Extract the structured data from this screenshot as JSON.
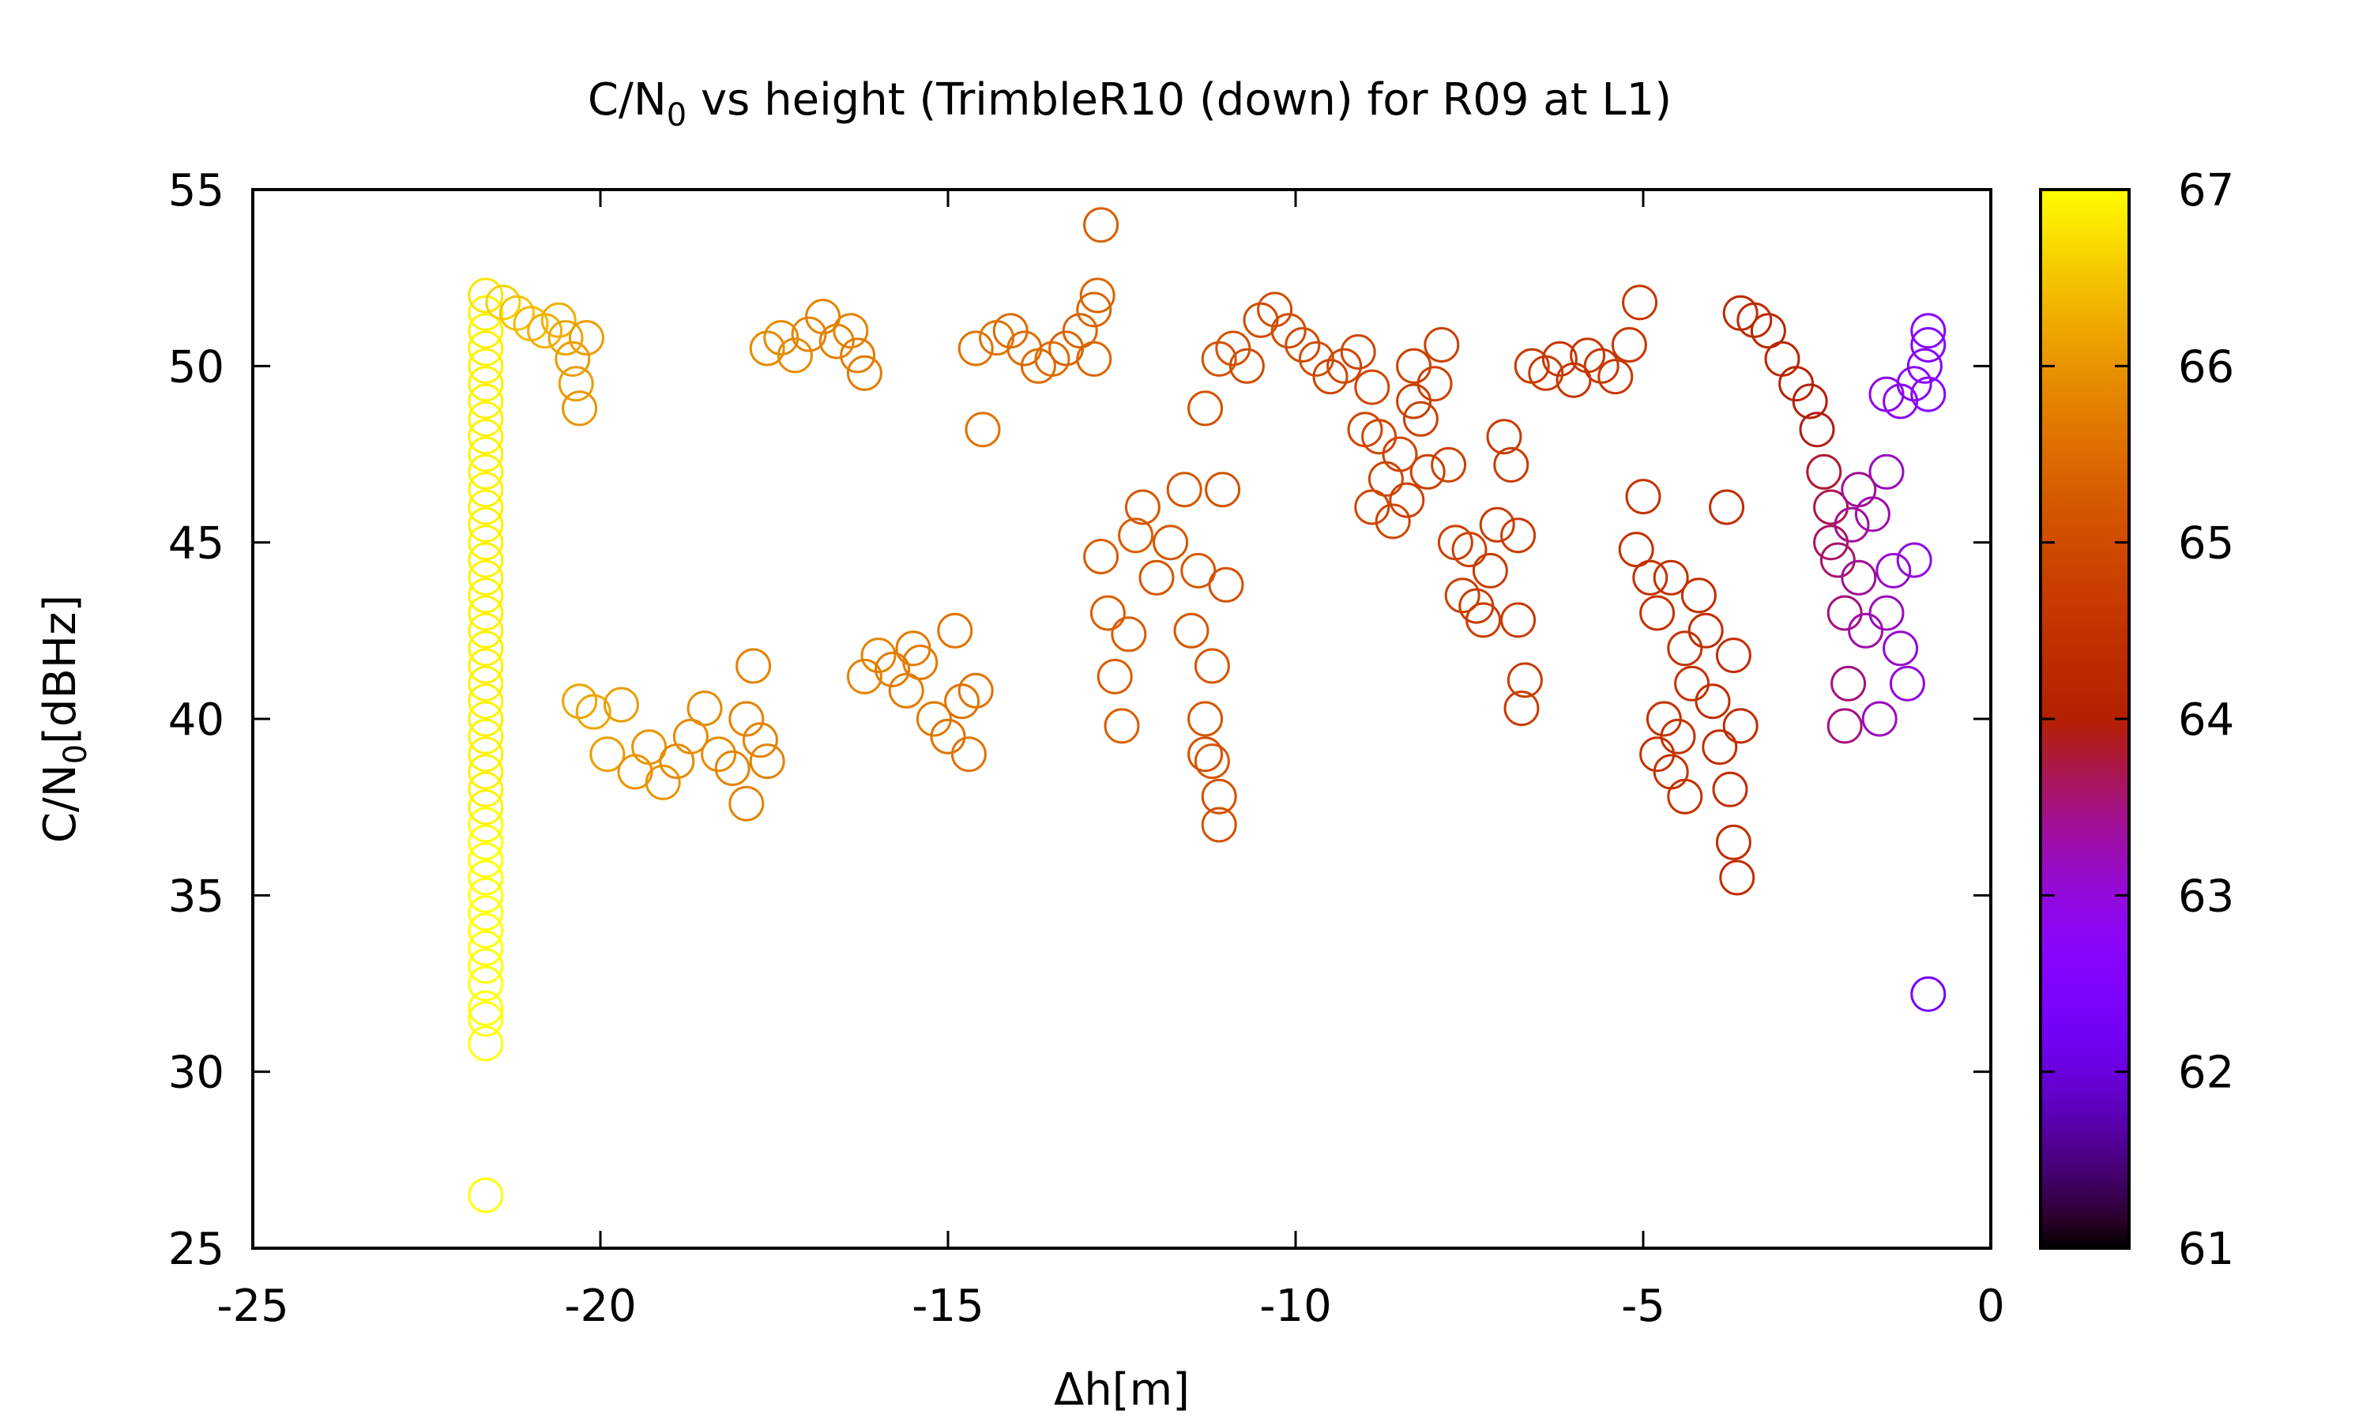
{
  "chart_data": {
    "type": "scatter",
    "title": "C/N",
    "title_sub": "0",
    "title_rest": " vs height (TrimbleR10 (down) for R09 at L1)",
    "xlabel": "Δh[m]",
    "ylabel_main": "C/N",
    "ylabel_sub": "0",
    "ylabel_rest": "[dBHz]",
    "xlim": [
      -25,
      0
    ],
    "ylim": [
      25,
      55
    ],
    "xticks": [
      -25,
      -20,
      -15,
      -10,
      -5,
      0
    ],
    "yticks": [
      25,
      30,
      35,
      40,
      45,
      50,
      55
    ],
    "colorbar": {
      "range": [
        61,
        67
      ],
      "ticks": [
        61,
        62,
        63,
        64,
        65,
        66,
        67
      ],
      "palette": "gnuplot-pm3d"
    },
    "grid": false,
    "marker": "open-circle",
    "point_format": [
      "x",
      "y",
      "c"
    ],
    "points": [
      [
        -21.65,
        26.5,
        67.0
      ],
      [
        -21.65,
        30.8,
        67.0
      ],
      [
        -21.65,
        31.5,
        67.0
      ],
      [
        -21.65,
        31.8,
        67.0
      ],
      [
        -21.65,
        32.5,
        67.0
      ],
      [
        -21.65,
        33.0,
        67.0
      ],
      [
        -21.65,
        33.5,
        67.0
      ],
      [
        -21.65,
        34.0,
        67.0
      ],
      [
        -21.65,
        34.5,
        67.0
      ],
      [
        -21.65,
        35.0,
        67.0
      ],
      [
        -21.65,
        35.5,
        67.0
      ],
      [
        -21.65,
        36.0,
        67.0
      ],
      [
        -21.65,
        36.5,
        67.0
      ],
      [
        -21.65,
        37.0,
        67.0
      ],
      [
        -21.65,
        37.5,
        66.9
      ],
      [
        -21.65,
        38.0,
        66.9
      ],
      [
        -21.65,
        38.5,
        66.9
      ],
      [
        -21.65,
        39.0,
        66.9
      ],
      [
        -21.65,
        39.5,
        66.9
      ],
      [
        -21.65,
        40.0,
        66.9
      ],
      [
        -21.65,
        40.5,
        66.9
      ],
      [
        -21.65,
        41.0,
        66.9
      ],
      [
        -21.65,
        41.5,
        66.9
      ],
      [
        -21.65,
        42.0,
        66.9
      ],
      [
        -21.65,
        42.5,
        66.9
      ],
      [
        -21.65,
        43.0,
        66.9
      ],
      [
        -21.65,
        43.5,
        66.9
      ],
      [
        -21.65,
        44.0,
        66.9
      ],
      [
        -21.65,
        44.5,
        66.9
      ],
      [
        -21.65,
        45.0,
        66.9
      ],
      [
        -21.65,
        45.5,
        66.9
      ],
      [
        -21.65,
        46.0,
        66.9
      ],
      [
        -21.65,
        46.5,
        66.9
      ],
      [
        -21.65,
        47.0,
        66.9
      ],
      [
        -21.65,
        47.5,
        66.9
      ],
      [
        -21.65,
        48.0,
        66.9
      ],
      [
        -21.65,
        48.5,
        66.9
      ],
      [
        -21.65,
        49.0,
        66.9
      ],
      [
        -21.65,
        49.5,
        66.9
      ],
      [
        -21.65,
        50.0,
        66.9
      ],
      [
        -21.65,
        50.5,
        66.9
      ],
      [
        -21.65,
        51.0,
        66.9
      ],
      [
        -21.65,
        51.5,
        66.9
      ],
      [
        -21.65,
        52.0,
        66.8
      ],
      [
        -21.4,
        51.8,
        66.6
      ],
      [
        -21.2,
        51.5,
        66.5
      ],
      [
        -21.0,
        51.2,
        66.4
      ],
      [
        -20.8,
        51.0,
        66.3
      ],
      [
        -20.6,
        51.3,
        66.3
      ],
      [
        -20.5,
        50.8,
        66.2
      ],
      [
        -20.4,
        50.2,
        66.1
      ],
      [
        -20.35,
        49.5,
        66.1
      ],
      [
        -20.3,
        48.8,
        66.0
      ],
      [
        -20.2,
        50.8,
        66.1
      ],
      [
        -20.3,
        40.5,
        66.2
      ],
      [
        -20.1,
        40.2,
        66.2
      ],
      [
        -19.9,
        39.0,
        66.1
      ],
      [
        -19.7,
        40.4,
        66.1
      ],
      [
        -19.5,
        38.5,
        66.0
      ],
      [
        -19.3,
        39.2,
        66.0
      ],
      [
        -19.1,
        38.2,
        66.0
      ],
      [
        -18.9,
        38.8,
        65.9
      ],
      [
        -18.7,
        39.5,
        65.9
      ],
      [
        -18.5,
        40.3,
        65.9
      ],
      [
        -18.3,
        39.0,
        65.9
      ],
      [
        -18.1,
        38.6,
        65.8
      ],
      [
        -17.9,
        40.0,
        65.8
      ],
      [
        -17.8,
        41.5,
        65.8
      ],
      [
        -17.7,
        39.4,
        65.8
      ],
      [
        -17.9,
        37.6,
        65.8
      ],
      [
        -17.6,
        38.8,
        65.8
      ],
      [
        -17.6,
        50.5,
        65.9
      ],
      [
        -17.4,
        50.8,
        65.9
      ],
      [
        -17.2,
        50.3,
        65.9
      ],
      [
        -17.0,
        50.9,
        65.8
      ],
      [
        -16.8,
        51.4,
        65.8
      ],
      [
        -16.6,
        50.7,
        65.8
      ],
      [
        -16.4,
        51.0,
        65.8
      ],
      [
        -16.3,
        50.3,
        65.7
      ],
      [
        -16.2,
        49.8,
        65.7
      ],
      [
        -16.2,
        41.2,
        65.8
      ],
      [
        -16.0,
        41.8,
        65.8
      ],
      [
        -15.8,
        41.4,
        65.7
      ],
      [
        -15.6,
        40.8,
        65.7
      ],
      [
        -15.4,
        41.6,
        65.7
      ],
      [
        -15.2,
        40.0,
        65.7
      ],
      [
        -15.0,
        39.5,
        65.6
      ],
      [
        -14.9,
        42.5,
        65.6
      ],
      [
        -14.8,
        40.5,
        65.6
      ],
      [
        -14.6,
        40.8,
        65.6
      ],
      [
        -14.7,
        39.0,
        65.6
      ],
      [
        -15.5,
        42.0,
        65.7
      ],
      [
        -14.6,
        50.5,
        65.6
      ],
      [
        -14.5,
        48.2,
        65.6
      ],
      [
        -14.3,
        50.8,
        65.6
      ],
      [
        -14.1,
        51.0,
        65.5
      ],
      [
        -13.9,
        50.5,
        65.5
      ],
      [
        -13.7,
        50.0,
        65.5
      ],
      [
        -13.5,
        50.2,
        65.5
      ],
      [
        -13.3,
        50.5,
        65.4
      ],
      [
        -13.1,
        51.0,
        65.4
      ],
      [
        -12.9,
        51.6,
        65.4
      ],
      [
        -12.85,
        52.0,
        65.4
      ],
      [
        -12.8,
        54.0,
        65.3
      ],
      [
        -12.9,
        50.2,
        65.4
      ],
      [
        -12.8,
        44.6,
        65.3
      ],
      [
        -12.7,
        43.0,
        65.3
      ],
      [
        -12.6,
        41.2,
        65.3
      ],
      [
        -12.5,
        39.8,
        65.3
      ],
      [
        -12.4,
        42.4,
        65.3
      ],
      [
        -12.3,
        45.2,
        65.3
      ],
      [
        -12.2,
        46.0,
        65.2
      ],
      [
        -12.0,
        44.0,
        65.2
      ],
      [
        -11.8,
        45.0,
        65.2
      ],
      [
        -11.6,
        46.5,
        65.2
      ],
      [
        -11.5,
        42.5,
        65.2
      ],
      [
        -11.4,
        44.2,
        65.2
      ],
      [
        -11.3,
        40.0,
        65.2
      ],
      [
        -11.2,
        38.8,
        65.2
      ],
      [
        -11.1,
        37.0,
        65.1
      ],
      [
        -11.05,
        46.5,
        65.1
      ],
      [
        -11.2,
        41.5,
        65.2
      ],
      [
        -11.1,
        37.8,
        65.1
      ],
      [
        -11.0,
        43.8,
        65.1
      ],
      [
        -11.3,
        39.0,
        65.1
      ],
      [
        -11.3,
        48.8,
        65.1
      ],
      [
        -11.1,
        50.2,
        65.1
      ],
      [
        -10.9,
        50.5,
        65.1
      ],
      [
        -10.7,
        50.0,
        65.0
      ],
      [
        -10.5,
        51.3,
        65.0
      ],
      [
        -10.3,
        51.6,
        65.0
      ],
      [
        -10.1,
        51.0,
        65.0
      ],
      [
        -9.9,
        50.6,
        65.0
      ],
      [
        -9.7,
        50.2,
        65.0
      ],
      [
        -9.5,
        49.7,
        64.9
      ],
      [
        -9.3,
        50.0,
        64.9
      ],
      [
        -9.1,
        50.4,
        64.9
      ],
      [
        -8.9,
        49.4,
        64.9
      ],
      [
        -8.8,
        48.0,
        64.9
      ],
      [
        -8.7,
        46.8,
        64.9
      ],
      [
        -8.6,
        45.6,
        64.9
      ],
      [
        -8.5,
        47.5,
        64.9
      ],
      [
        -8.4,
        46.2,
        64.8
      ],
      [
        -8.3,
        49.0,
        64.8
      ],
      [
        -8.2,
        48.5,
        64.8
      ],
      [
        -8.1,
        47.0,
        64.8
      ],
      [
        -8.0,
        49.5,
        64.8
      ],
      [
        -7.9,
        50.6,
        64.8
      ],
      [
        -7.8,
        47.2,
        64.8
      ],
      [
        -7.7,
        45.0,
        64.8
      ],
      [
        -7.6,
        43.5,
        64.8
      ],
      [
        -7.5,
        44.8,
        64.8
      ],
      [
        -7.4,
        43.2,
        64.7
      ],
      [
        -7.3,
        42.8,
        64.7
      ],
      [
        -7.2,
        44.2,
        64.7
      ],
      [
        -7.1,
        45.5,
        64.7
      ],
      [
        -7.0,
        48.0,
        64.7
      ],
      [
        -6.9,
        47.2,
        64.7
      ],
      [
        -6.8,
        42.8,
        64.7
      ],
      [
        -6.75,
        40.3,
        64.7
      ],
      [
        -6.7,
        41.1,
        64.7
      ],
      [
        -6.8,
        45.2,
        64.7
      ],
      [
        -8.9,
        46.0,
        64.9
      ],
      [
        -8.3,
        50.0,
        64.8
      ],
      [
        -9.0,
        48.2,
        64.9
      ],
      [
        -6.6,
        50.0,
        64.7
      ],
      [
        -6.4,
        49.8,
        64.7
      ],
      [
        -6.2,
        50.2,
        64.6
      ],
      [
        -6.0,
        49.6,
        64.6
      ],
      [
        -5.8,
        50.3,
        64.6
      ],
      [
        -5.6,
        50.0,
        64.6
      ],
      [
        -5.4,
        49.7,
        64.6
      ],
      [
        -5.2,
        50.6,
        64.6
      ],
      [
        -5.05,
        51.8,
        64.6
      ],
      [
        -5.0,
        46.3,
        64.5
      ],
      [
        -4.9,
        44.0,
        64.5
      ],
      [
        -4.8,
        43.0,
        64.5
      ],
      [
        -4.7,
        40.0,
        64.5
      ],
      [
        -4.6,
        38.5,
        64.5
      ],
      [
        -4.5,
        39.5,
        64.5
      ],
      [
        -4.4,
        37.8,
        64.5
      ],
      [
        -4.3,
        41.0,
        64.5
      ],
      [
        -4.2,
        43.5,
        64.4
      ],
      [
        -4.1,
        42.5,
        64.4
      ],
      [
        -4.0,
        40.5,
        64.4
      ],
      [
        -3.9,
        39.2,
        64.4
      ],
      [
        -3.8,
        46.0,
        64.4
      ],
      [
        -3.75,
        38.0,
        64.4
      ],
      [
        -3.7,
        36.5,
        64.4
      ],
      [
        -3.65,
        35.5,
        64.4
      ],
      [
        -3.6,
        39.8,
        64.4
      ],
      [
        -3.7,
        41.8,
        64.4
      ],
      [
        -4.6,
        44.0,
        64.5
      ],
      [
        -5.1,
        44.8,
        64.5
      ],
      [
        -4.8,
        39.0,
        64.5
      ],
      [
        -4.4,
        42.0,
        64.5
      ],
      [
        -3.6,
        51.5,
        64.3
      ],
      [
        -3.4,
        51.3,
        64.3
      ],
      [
        -3.2,
        51.0,
        64.2
      ],
      [
        -3.0,
        50.2,
        64.2
      ],
      [
        -2.8,
        49.5,
        64.1
      ],
      [
        -2.6,
        49.0,
        64.0
      ],
      [
        -2.5,
        48.2,
        63.9
      ],
      [
        -2.4,
        47.0,
        63.8
      ],
      [
        -2.3,
        46.0,
        63.7
      ],
      [
        -2.2,
        44.5,
        63.6
      ],
      [
        -2.1,
        43.0,
        63.5
      ],
      [
        -2.05,
        41.0,
        63.5
      ],
      [
        -2.1,
        39.8,
        63.5
      ],
      [
        -2.0,
        45.5,
        63.4
      ],
      [
        -1.9,
        44.0,
        63.4
      ],
      [
        -1.8,
        42.5,
        63.3
      ],
      [
        -1.7,
        45.8,
        63.3
      ],
      [
        -1.6,
        40.0,
        63.2
      ],
      [
        -1.5,
        47.0,
        63.2
      ],
      [
        -1.4,
        44.2,
        63.1
      ],
      [
        -1.3,
        42.0,
        63.1
      ],
      [
        -1.2,
        41.0,
        63.0
      ],
      [
        -1.1,
        44.5,
        63.0
      ],
      [
        -2.3,
        45.0,
        63.6
      ],
      [
        -1.9,
        46.5,
        63.4
      ],
      [
        -1.5,
        43.0,
        63.2
      ],
      [
        -1.5,
        49.2,
        62.9
      ],
      [
        -1.3,
        49.0,
        62.8
      ],
      [
        -1.1,
        49.5,
        62.8
      ],
      [
        -0.95,
        50.0,
        62.7
      ],
      [
        -0.9,
        50.6,
        62.7
      ],
      [
        -0.9,
        51.0,
        62.7
      ],
      [
        -0.9,
        49.2,
        62.7
      ],
      [
        -0.9,
        32.2,
        62.3
      ]
    ]
  }
}
